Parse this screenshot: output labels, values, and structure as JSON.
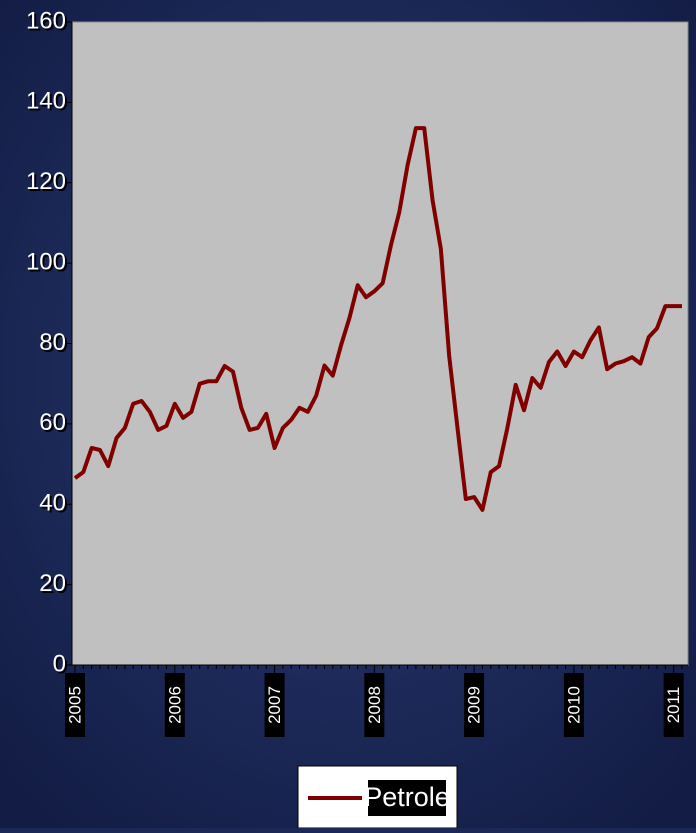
{
  "chart_data": {
    "type": "line",
    "categories": [
      "2005",
      null,
      null,
      null,
      null,
      null,
      null,
      null,
      null,
      null,
      null,
      null,
      "2006",
      null,
      null,
      null,
      null,
      null,
      null,
      null,
      null,
      null,
      null,
      null,
      "2007",
      null,
      null,
      null,
      null,
      null,
      null,
      null,
      null,
      null,
      null,
      null,
      "2008",
      null,
      null,
      null,
      null,
      null,
      null,
      null,
      null,
      null,
      null,
      null,
      "2009",
      null,
      null,
      null,
      null,
      null,
      null,
      null,
      null,
      null,
      null,
      null,
      "2010",
      null,
      null,
      null,
      null,
      null,
      null,
      null,
      null,
      null,
      null,
      null,
      "2011",
      null
    ],
    "series": [
      {
        "name": "Petrole",
        "color": "#800000",
        "values": [
          46.5,
          48,
          54,
          53.5,
          49.5,
          56.5,
          59,
          65,
          65.7,
          63,
          58.5,
          59.5,
          65,
          61.5,
          63,
          70,
          70.6,
          70.6,
          74.4,
          73,
          64,
          58.5,
          59,
          62.5,
          54,
          59,
          61,
          64,
          63,
          67,
          74.5,
          72,
          79.6,
          86.3,
          94.5,
          91.5,
          93,
          95,
          104.5,
          112.7,
          124.4,
          133.6,
          133.6,
          115.7,
          103.5,
          76.9,
          59,
          41.3,
          41.8,
          38.6,
          48,
          49.5,
          59,
          69.7,
          63.4,
          71.4,
          69,
          75.4,
          78,
          74.4,
          78,
          76.6,
          80.8,
          84,
          73.6,
          75,
          75.6,
          76.6,
          75,
          81.6,
          83.8,
          89.3,
          89.3,
          89.3
        ]
      }
    ],
    "ylim": [
      0,
      160
    ],
    "yticks": [
      0,
      20,
      40,
      60,
      80,
      100,
      120,
      140,
      160
    ]
  }
}
